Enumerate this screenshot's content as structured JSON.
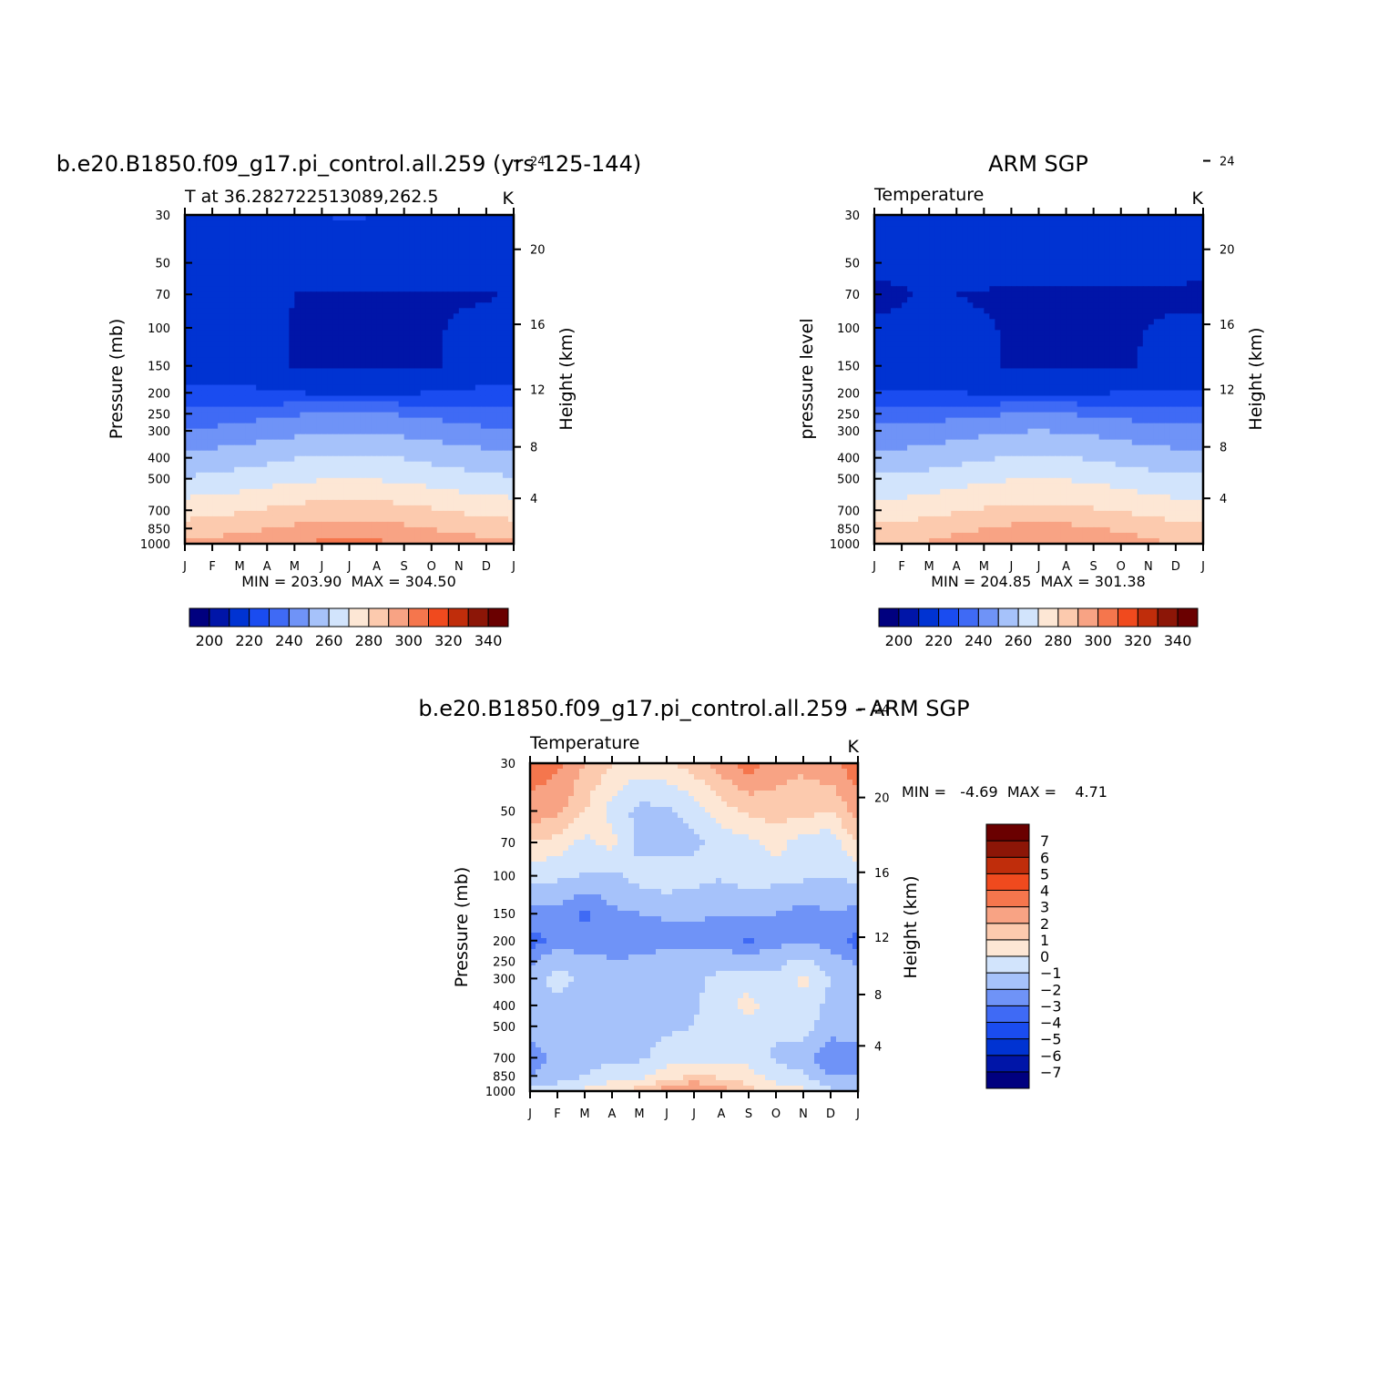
{
  "chart_data": [
    {
      "type": "heatmap",
      "id": "model",
      "title": "b.e20.B1850.f09_g17.pi_control.all.259 (yrs 125-144)",
      "subtitle_left": "T at 36.282722513089,262.5",
      "subtitle_right": "K",
      "ylabel": "Pressure (mb)",
      "ylabel_right": "Height (km)",
      "min_max": "MIN = 203.90  MAX = 304.50",
      "x": [
        "J",
        "F",
        "M",
        "A",
        "M",
        "J",
        "J",
        "A",
        "S",
        "O",
        "N",
        "D",
        "J"
      ],
      "y_pressure": [
        1000,
        850,
        700,
        500,
        400,
        300,
        250,
        200,
        150,
        100,
        70,
        50,
        30
      ],
      "y_ticks": [
        "30",
        "50",
        "70",
        "100",
        "150",
        "200",
        "250",
        "300",
        "400",
        "500",
        "700",
        "850",
        "1000"
      ],
      "y_right_ticks": [
        "4",
        "8",
        "12",
        "16",
        "20",
        "24"
      ],
      "levels": [
        200,
        210,
        220,
        230,
        240,
        250,
        260,
        270,
        280,
        290,
        300,
        310,
        320,
        330,
        340
      ],
      "colorbar_labels": [
        "200",
        "220",
        "240",
        "260",
        "280",
        "300",
        "320",
        "340"
      ],
      "colors": [
        "#00007f",
        "#0015a8",
        "#0033d2",
        "#1a4cf0",
        "#3f6af5",
        "#6f93f7",
        "#a6c2fa",
        "#d2e4fc",
        "#fde7d5",
        "#fccaae",
        "#f8a384",
        "#f5764d",
        "#f04a1e",
        "#c02d0b",
        "#8c1607",
        "#6a0000"
      ],
      "z": [
        [
          294,
          294.5,
          296,
          298,
          300,
          302,
          302.5,
          302,
          300,
          298,
          296,
          294.5,
          294
        ],
        [
          284,
          285,
          287,
          289.5,
          292,
          293.5,
          294,
          293.5,
          292,
          289.5,
          287,
          285,
          284
        ],
        [
          276,
          277,
          279,
          281,
          283,
          284.5,
          285,
          284.5,
          283,
          281,
          279,
          277,
          276
        ],
        [
          261,
          262,
          264,
          266,
          268,
          269.5,
          270,
          269.5,
          268,
          266,
          264,
          262,
          261
        ],
        [
          253,
          254,
          255.5,
          257.5,
          259.5,
          261,
          261.5,
          261,
          259.5,
          257.5,
          255.5,
          254,
          253
        ],
        [
          241,
          242,
          243.5,
          245.5,
          247.5,
          249,
          249.5,
          249,
          247.5,
          245.5,
          243.5,
          242,
          241
        ],
        [
          234,
          234.5,
          236,
          237.5,
          239,
          240.5,
          241,
          240.5,
          239,
          237.5,
          236,
          234.5,
          234
        ],
        [
          222,
          222,
          222,
          221,
          220,
          219.5,
          219,
          219,
          219.5,
          220,
          221,
          222,
          222
        ],
        [
          215,
          215,
          215,
          214,
          209,
          208,
          208,
          208,
          208,
          208,
          212,
          215,
          215
        ],
        [
          215,
          215,
          214,
          213,
          209,
          208,
          208,
          208,
          208,
          209,
          211,
          213,
          215
        ],
        [
          211,
          213,
          214,
          213,
          210,
          209,
          209,
          209,
          209,
          209,
          209,
          209,
          211
        ],
        [
          215,
          215,
          215,
          215,
          216,
          216,
          216,
          216,
          215,
          215,
          215,
          215,
          215
        ],
        [
          216,
          216,
          217,
          218,
          219,
          220,
          220.5,
          220,
          218,
          217,
          216,
          216,
          216
        ]
      ]
    },
    {
      "type": "heatmap",
      "id": "obs",
      "title": "ARM SGP",
      "subtitle_left": "Temperature",
      "subtitle_right": "K",
      "ylabel": "pressure level",
      "ylabel_right": "Height (km)",
      "min_max": "MIN = 204.85  MAX = 301.38",
      "x": [
        "J",
        "F",
        "M",
        "A",
        "M",
        "J",
        "J",
        "A",
        "S",
        "O",
        "N",
        "D",
        "J"
      ],
      "y_pressure": [
        1000,
        850,
        700,
        500,
        400,
        300,
        250,
        200,
        150,
        100,
        70,
        50,
        30
      ],
      "y_ticks": [
        "30",
        "50",
        "70",
        "100",
        "150",
        "200",
        "250",
        "300",
        "400",
        "500",
        "700",
        "850",
        "1000"
      ],
      "y_right_ticks": [
        "4",
        "8",
        "12",
        "16",
        "20",
        "24"
      ],
      "levels": [
        200,
        210,
        220,
        230,
        240,
        250,
        260,
        270,
        280,
        290,
        300,
        310,
        320,
        330,
        340
      ],
      "colorbar_labels": [
        "200",
        "220",
        "240",
        "260",
        "280",
        "300",
        "320",
        "340"
      ],
      "colors": [
        "#00007f",
        "#0015a8",
        "#0033d2",
        "#1a4cf0",
        "#3f6af5",
        "#6f93f7",
        "#a6c2fa",
        "#d2e4fc",
        "#fde7d5",
        "#fccaae",
        "#f8a384",
        "#f5764d",
        "#f04a1e",
        "#c02d0b",
        "#8c1607",
        "#6a0000"
      ],
      "z": [
        [
          288,
          289,
          291,
          293.5,
          296,
          298.5,
          300.5,
          300,
          298,
          295,
          292,
          289.5,
          288
        ],
        [
          282,
          283,
          285,
          287.5,
          290,
          292,
          293,
          292.5,
          291,
          288.5,
          286,
          283.5,
          282
        ],
        [
          274,
          275,
          277,
          279,
          281,
          282.5,
          283,
          282.5,
          281,
          279,
          277,
          275,
          274
        ],
        [
          262,
          262.5,
          264,
          266,
          268,
          269.5,
          270,
          269.5,
          268,
          266,
          264,
          262.5,
          262
        ],
        [
          253,
          253.5,
          255,
          257,
          259,
          260.5,
          261,
          260.5,
          259,
          257,
          255,
          253.5,
          253
        ],
        [
          243,
          243.5,
          244.5,
          246,
          248,
          249.5,
          250,
          249.5,
          248,
          246,
          244.5,
          243.5,
          243
        ],
        [
          235,
          235.5,
          236,
          237,
          238.5,
          240,
          240.5,
          240,
          238.5,
          237,
          236,
          235.5,
          235
        ],
        [
          220,
          220,
          220,
          220,
          219.5,
          219,
          219,
          219,
          219.5,
          220,
          220,
          220,
          220
        ],
        [
          214,
          214,
          214,
          213,
          211,
          209,
          208,
          208,
          208,
          209,
          211,
          214,
          214
        ],
        [
          211,
          212,
          213,
          212,
          211,
          209,
          208,
          208,
          208,
          209,
          210,
          211,
          211
        ],
        [
          208,
          209,
          211,
          210,
          209,
          208,
          208,
          208,
          208,
          208,
          209,
          209,
          208
        ],
        [
          212,
          213,
          214,
          215,
          215.5,
          216,
          216,
          216,
          215,
          215,
          214,
          213,
          212
        ],
        [
          215,
          215,
          215,
          215,
          216,
          216,
          217,
          216,
          215,
          215,
          215,
          215,
          215
        ]
      ]
    },
    {
      "type": "heatmap",
      "id": "diff",
      "title": "b.e20.B1850.f09_g17.pi_control.all.259 - ARM SGP",
      "subtitle_left": "Temperature",
      "subtitle_right": "K",
      "ylabel": "Pressure (mb)",
      "ylabel_right": "Height (km)",
      "min_max": "MIN =   -4.69  MAX =    4.71",
      "x": [
        "J",
        "F",
        "M",
        "A",
        "M",
        "J",
        "J",
        "A",
        "S",
        "O",
        "N",
        "D",
        "J"
      ],
      "y_pressure": [
        1000,
        850,
        700,
        500,
        400,
        300,
        250,
        200,
        150,
        100,
        70,
        50,
        30
      ],
      "y_ticks": [
        "30",
        "50",
        "70",
        "100",
        "150",
        "200",
        "250",
        "300",
        "400",
        "500",
        "700",
        "850",
        "1000"
      ],
      "y_right_ticks": [
        "4",
        "8",
        "12",
        "16",
        "20",
        "24"
      ],
      "levels": [
        -7,
        -6,
        -5,
        -4,
        -3,
        -2,
        -1,
        0,
        1,
        2,
        3,
        4,
        5,
        6,
        7
      ],
      "colorbar_labels": [
        "-7",
        "-6",
        "-5",
        "-4",
        "-3",
        "-2",
        "-1",
        "0",
        "1",
        "2",
        "3",
        "4",
        "5",
        "6",
        "7"
      ],
      "colors": [
        "#00007f",
        "#0015a8",
        "#0033d2",
        "#1a4cf0",
        "#3f6af5",
        "#6f93f7",
        "#a6c2fa",
        "#d2e4fc",
        "#fde7d5",
        "#fccaae",
        "#f8a384",
        "#f5764d",
        "#f04a1e",
        "#c02d0b",
        "#8c1607",
        "#6a0000"
      ],
      "z": [
        [
          -0.8,
          -0.5,
          0.2,
          0.8,
          1.5,
          2.5,
          3.5,
          2.5,
          1.5,
          0.5,
          0.2,
          -0.8,
          -0.8
        ],
        [
          -2.0,
          -1.5,
          -1.0,
          -0.5,
          -0.3,
          0.5,
          1.0,
          0.8,
          0.3,
          -0.5,
          -0.8,
          -2.0,
          -2.0
        ],
        [
          -2.5,
          -1.8,
          -1.3,
          -1.2,
          -1.2,
          -0.5,
          -0.4,
          -0.3,
          -0.2,
          -1.2,
          -1.5,
          -2.8,
          -2.5
        ],
        [
          -1.5,
          -1.3,
          -1.5,
          -1.6,
          -1.4,
          -1.2,
          -1.0,
          -0.6,
          -0.4,
          -0.8,
          -0.6,
          -1.5,
          -1.5
        ],
        [
          -1.5,
          -1.2,
          -1.6,
          -1.7,
          -1.5,
          -1.3,
          -1.1,
          -0.5,
          0.5,
          -0.8,
          -0.4,
          -1.3,
          -1.5
        ],
        [
          -1.5,
          -0.6,
          -1.3,
          -1.7,
          -1.6,
          -1.4,
          -1.2,
          -0.8,
          -0.6,
          -0.9,
          0.3,
          -1.0,
          -1.5
        ],
        [
          -2.2,
          -1.2,
          -1.6,
          -1.9,
          -1.8,
          -1.6,
          -1.5,
          -1.3,
          -1.4,
          -1.2,
          -0.8,
          -1.6,
          -2.2
        ],
        [
          -3.5,
          -2.6,
          -2.6,
          -2.7,
          -2.5,
          -2.3,
          -2.2,
          -2.3,
          -3.2,
          -2.4,
          -2.1,
          -2.4,
          -3.5
        ],
        [
          -2.4,
          -2.2,
          -3.2,
          -2.2,
          -2.0,
          -1.9,
          -1.9,
          -2.0,
          -2.0,
          -2.0,
          -2.4,
          -2.0,
          -2.4
        ],
        [
          -0.7,
          -0.8,
          -1.1,
          -1.2,
          -0.6,
          -0.3,
          -0.6,
          -0.9,
          -0.4,
          -0.7,
          -0.8,
          -1.0,
          -0.7
        ],
        [
          1.0,
          0.6,
          -0.3,
          0.4,
          -1.4,
          -1.5,
          -1.2,
          -0.6,
          -0.3,
          0.5,
          -0.6,
          -0.6,
          1.0
        ],
        [
          2.6,
          2.3,
          1.0,
          -0.4,
          -1.3,
          -1.2,
          -0.6,
          0.6,
          1.2,
          1.5,
          1.4,
          1.0,
          2.6
        ],
        [
          3.6,
          3.2,
          2.0,
          1.0,
          0.5,
          0.8,
          1.5,
          2.5,
          3.5,
          2.5,
          2.2,
          2.8,
          3.6
        ]
      ]
    }
  ]
}
